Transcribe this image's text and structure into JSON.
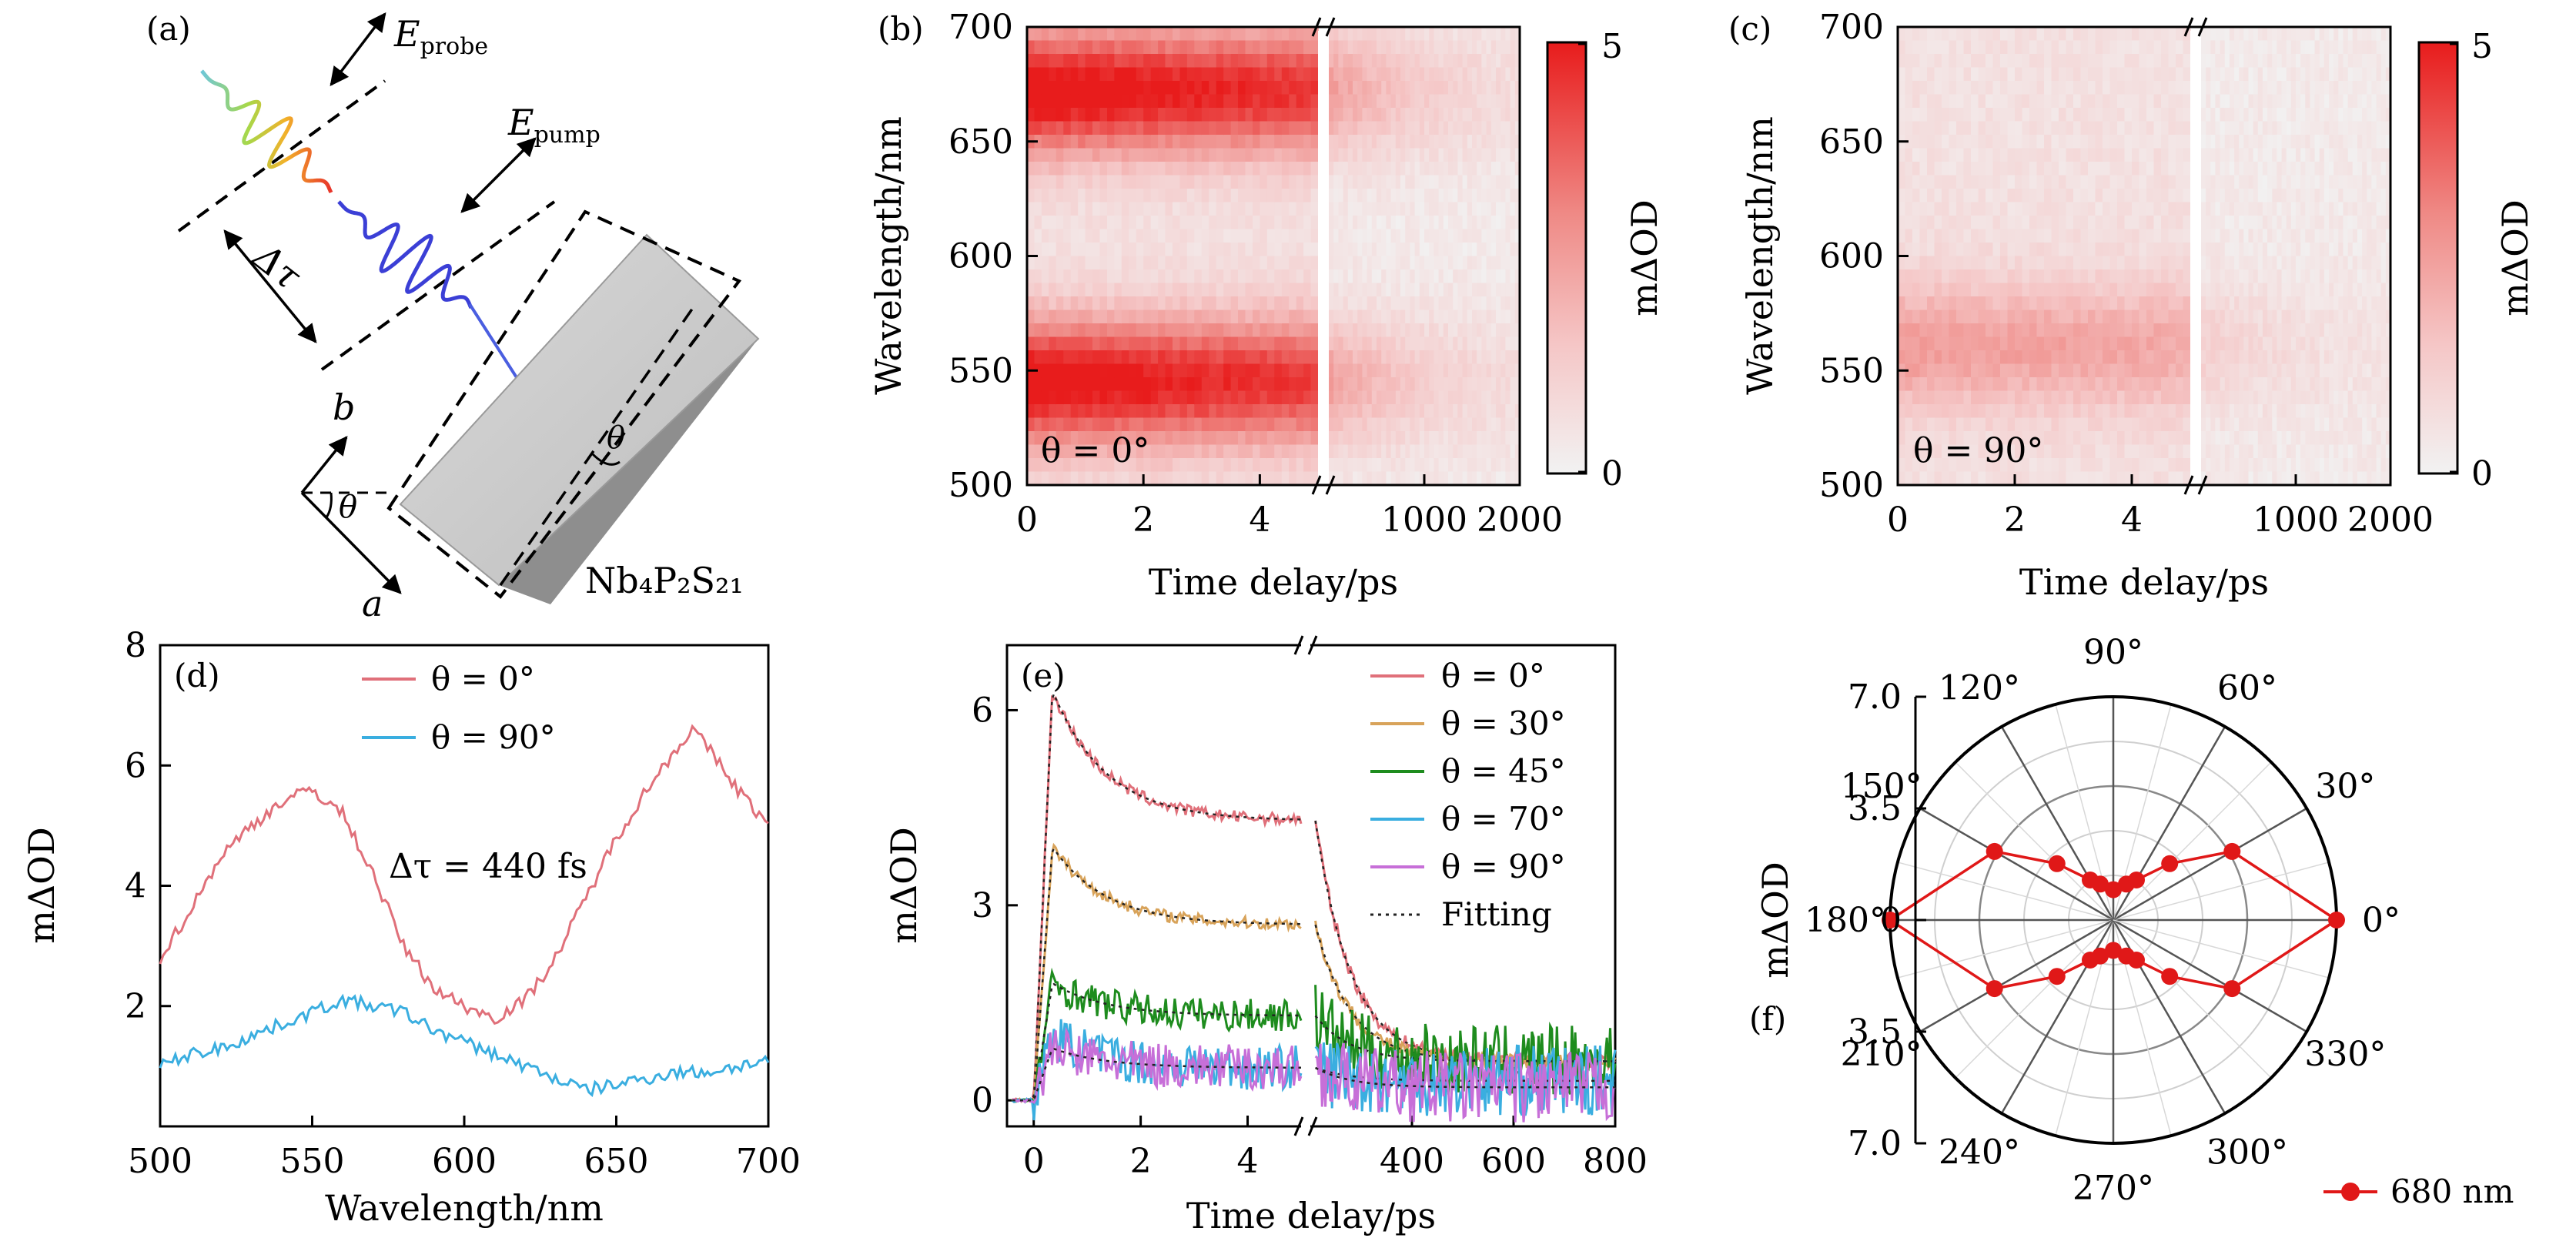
{
  "chart_data": [
    {
      "panel": "(a)",
      "type": "other",
      "labels": {
        "probe": "E",
        "probe_sub": "probe",
        "pump": "E",
        "pump_sub": "pump",
        "delay": "Δτ",
        "axis_b": "b",
        "axis_a": "a",
        "angle": "θ",
        "material": "Nb₄P₂S₂₁"
      }
    },
    {
      "panel": "(b)",
      "type": "heatmap",
      "ylabel": "Wavelength/nm",
      "xlabel": "Time delay/ps",
      "ylim": [
        500,
        700
      ],
      "yticks": [
        "500",
        "550",
        "600",
        "650",
        "700"
      ],
      "xticks_left": [
        "0",
        "2",
        "4"
      ],
      "xticks_right": [
        "1000",
        "2000"
      ],
      "annotation": "θ = 0°",
      "colorbar": {
        "label": "mΔOD",
        "min": "0",
        "max": "5"
      },
      "bands": [
        {
          "wavelength": 545,
          "peak": 4.8
        },
        {
          "wavelength": 672,
          "peak": 4.9
        }
      ]
    },
    {
      "panel": "(c)",
      "type": "heatmap",
      "ylabel": "Wavelength/nm",
      "xlabel": "Time delay/ps",
      "ylim": [
        500,
        700
      ],
      "yticks": [
        "500",
        "550",
        "600",
        "650",
        "700"
      ],
      "xticks_left": [
        "0",
        "2",
        "4"
      ],
      "xticks_right": [
        "1000",
        "2000"
      ],
      "annotation": "θ = 90°",
      "colorbar": {
        "label": "mΔOD",
        "min": "0",
        "max": "5"
      },
      "bands": [
        {
          "wavelength": 560,
          "peak": 2.0
        }
      ]
    },
    {
      "panel": "(d)",
      "type": "line",
      "xlabel": "Wavelength/nm",
      "ylabel": "mΔOD",
      "xlim": [
        500,
        700
      ],
      "ylim": [
        0,
        8
      ],
      "xticks": [
        "500",
        "550",
        "600",
        "650",
        "700"
      ],
      "yticks": [
        "2",
        "4",
        "6",
        "8"
      ],
      "annotation": "Δτ = 440 fs",
      "series": [
        {
          "name": "θ = 0°",
          "color": "#e0707a",
          "x": [
            500,
            510,
            520,
            530,
            540,
            550,
            560,
            570,
            580,
            590,
            600,
            610,
            620,
            630,
            640,
            650,
            660,
            670,
            675,
            680,
            690,
            700
          ],
          "y": [
            2.8,
            3.6,
            4.5,
            5.0,
            5.4,
            5.6,
            5.2,
            4.2,
            3.0,
            2.3,
            2.0,
            1.8,
            2.1,
            2.8,
            3.8,
            4.8,
            5.6,
            6.3,
            6.6,
            6.3,
            5.6,
            5.0
          ]
        },
        {
          "name": "θ = 90°",
          "color": "#3aaee0",
          "x": [
            500,
            510,
            520,
            530,
            540,
            550,
            560,
            570,
            580,
            590,
            600,
            610,
            620,
            630,
            640,
            650,
            660,
            670,
            680,
            690,
            700
          ],
          "y": [
            1.0,
            1.2,
            1.3,
            1.5,
            1.7,
            1.9,
            2.1,
            2.0,
            1.9,
            1.6,
            1.4,
            1.2,
            1.0,
            0.8,
            0.6,
            0.7,
            0.8,
            0.9,
            0.9,
            1.0,
            1.1
          ]
        }
      ]
    },
    {
      "panel": "(e)",
      "type": "line",
      "xlabel": "Time delay/ps",
      "ylabel": "mΔOD",
      "xlim_left": [
        -0.5,
        5
      ],
      "xlim_right": [
        200,
        800
      ],
      "ylim": [
        -0.4,
        7
      ],
      "xticks_left": [
        "0",
        "2",
        "4"
      ],
      "xticks_right": [
        "400",
        "600",
        "800"
      ],
      "yticks": [
        "0",
        "3",
        "6"
      ],
      "series": [
        {
          "name": "θ = 0°",
          "color": "#e0707a",
          "amplitude": 6.3,
          "plateau": 4.3,
          "tail": 0.6
        },
        {
          "name": "θ = 30°",
          "color": "#d8a35a",
          "amplitude": 3.9,
          "plateau": 2.7,
          "tail": 0.6
        },
        {
          "name": "θ = 45°",
          "color": "#1e8c1e",
          "amplitude": 1.8,
          "plateau": 1.3,
          "tail": 0.6
        },
        {
          "name": "θ = 70°",
          "color": "#3aaee0",
          "amplitude": 1.0,
          "plateau": 0.5,
          "tail": 0.3
        },
        {
          "name": "θ = 90°",
          "color": "#c76fd8",
          "amplitude": 0.8,
          "plateau": 0.5,
          "tail": 0.2
        }
      ],
      "fit_label": "Fitting"
    },
    {
      "panel": "(f)",
      "type": "polar",
      "ylabel": "mΔOD",
      "rlim": [
        0,
        7.0
      ],
      "rticks": [
        "7.0",
        "3.5",
        "0",
        "3.5",
        "7.0"
      ],
      "angle_labels": [
        "0°",
        "30°",
        "60°",
        "90°",
        "120°",
        "150°",
        "180°",
        "210°",
        "240°",
        "270°",
        "300°",
        "330°"
      ],
      "series": [
        {
          "name": "680 nm",
          "color": "#e01818",
          "angle": [
            0,
            30,
            45,
            60,
            70,
            90,
            110,
            120,
            135,
            150,
            180,
            210,
            225,
            240,
            250,
            270,
            290,
            300,
            315,
            330,
            360
          ],
          "r": [
            7.0,
            4.3,
            2.5,
            1.45,
            1.2,
            0.95,
            1.2,
            1.45,
            2.5,
            4.3,
            7.0,
            4.3,
            2.5,
            1.45,
            1.2,
            0.95,
            1.2,
            1.45,
            2.5,
            4.3,
            7.0
          ]
        }
      ]
    }
  ]
}
